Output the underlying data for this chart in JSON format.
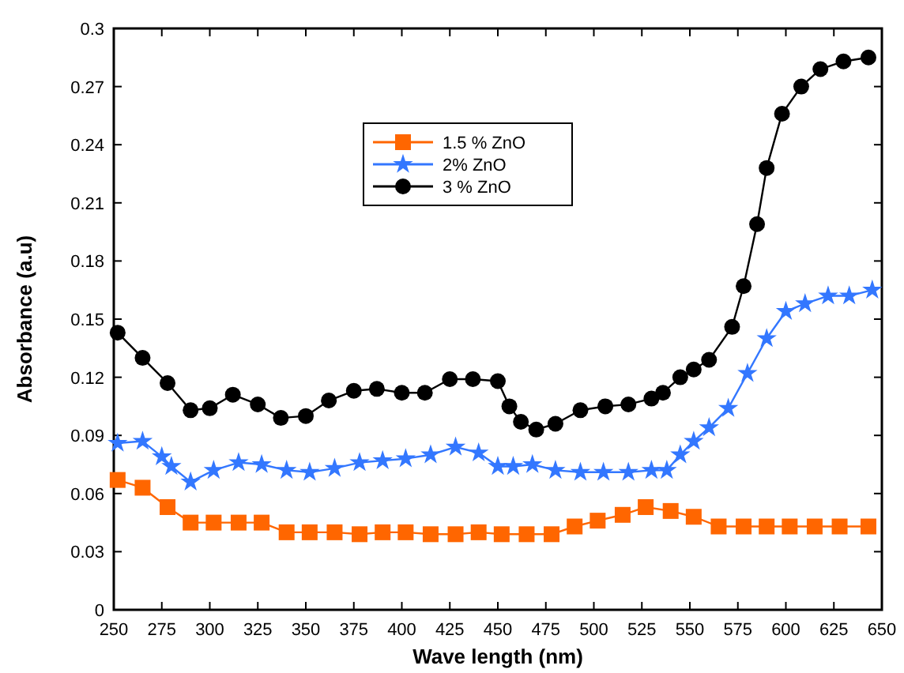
{
  "chart_data": {
    "type": "line",
    "xlabel": "Wave length (nm)",
    "ylabel": "Absorbance (a.u)",
    "xlim": [
      250,
      650
    ],
    "ylim": [
      0,
      0.3
    ],
    "xticks": [
      250,
      275,
      300,
      325,
      350,
      375,
      400,
      425,
      450,
      475,
      500,
      525,
      550,
      575,
      600,
      625,
      650
    ],
    "yticks": [
      0,
      0.03,
      0.06,
      0.09,
      0.12,
      0.15,
      0.18,
      0.21,
      0.24,
      0.27,
      0.3
    ],
    "legend": "top",
    "grid": false,
    "series": [
      {
        "name": "1.5 % ZnO",
        "color": "#ff6600",
        "marker": "square",
        "x": [
          252,
          265,
          278,
          290,
          302,
          315,
          327,
          340,
          352,
          365,
          378,
          390,
          402,
          415,
          428,
          440,
          452,
          465,
          478,
          490,
          502,
          515,
          527,
          540,
          552,
          565,
          578,
          590,
          602,
          615,
          628,
          643
        ],
        "values": [
          0.067,
          0.063,
          0.053,
          0.045,
          0.045,
          0.045,
          0.045,
          0.04,
          0.04,
          0.04,
          0.039,
          0.04,
          0.04,
          0.039,
          0.039,
          0.04,
          0.039,
          0.039,
          0.039,
          0.043,
          0.046,
          0.049,
          0.053,
          0.051,
          0.048,
          0.043,
          0.043,
          0.043,
          0.043,
          0.043,
          0.043,
          0.043
        ]
      },
      {
        "name": "2% ZnO",
        "color": "#3377ff",
        "marker": "star",
        "x": [
          252,
          265,
          275,
          280,
          290,
          302,
          315,
          327,
          340,
          352,
          365,
          378,
          390,
          402,
          415,
          428,
          440,
          450,
          458,
          468,
          480,
          493,
          505,
          518,
          530,
          538,
          545,
          552,
          560,
          570,
          580,
          590,
          600,
          610,
          622,
          633,
          645
        ],
        "values": [
          0.086,
          0.087,
          0.079,
          0.074,
          0.066,
          0.072,
          0.076,
          0.075,
          0.072,
          0.071,
          0.073,
          0.076,
          0.077,
          0.078,
          0.08,
          0.084,
          0.081,
          0.074,
          0.074,
          0.075,
          0.072,
          0.071,
          0.071,
          0.071,
          0.072,
          0.072,
          0.08,
          0.087,
          0.094,
          0.104,
          0.122,
          0.14,
          0.154,
          0.158,
          0.162,
          0.162,
          0.165
        ]
      },
      {
        "name": "3 % ZnO",
        "color": "#000000",
        "marker": "circle",
        "x": [
          252,
          265,
          278,
          290,
          300,
          312,
          325,
          337,
          350,
          362,
          375,
          387,
          400,
          412,
          425,
          437,
          450,
          456,
          462,
          470,
          480,
          493,
          506,
          518,
          530,
          536,
          545,
          552,
          560,
          572,
          578,
          585,
          590,
          598,
          608,
          618,
          630,
          643
        ],
        "values": [
          0.143,
          0.13,
          0.117,
          0.103,
          0.104,
          0.111,
          0.106,
          0.099,
          0.1,
          0.108,
          0.113,
          0.114,
          0.112,
          0.112,
          0.119,
          0.119,
          0.118,
          0.105,
          0.097,
          0.093,
          0.096,
          0.103,
          0.105,
          0.106,
          0.109,
          0.112,
          0.12,
          0.124,
          0.129,
          0.146,
          0.167,
          0.199,
          0.228,
          0.256,
          0.27,
          0.279,
          0.283,
          0.285
        ]
      }
    ]
  }
}
